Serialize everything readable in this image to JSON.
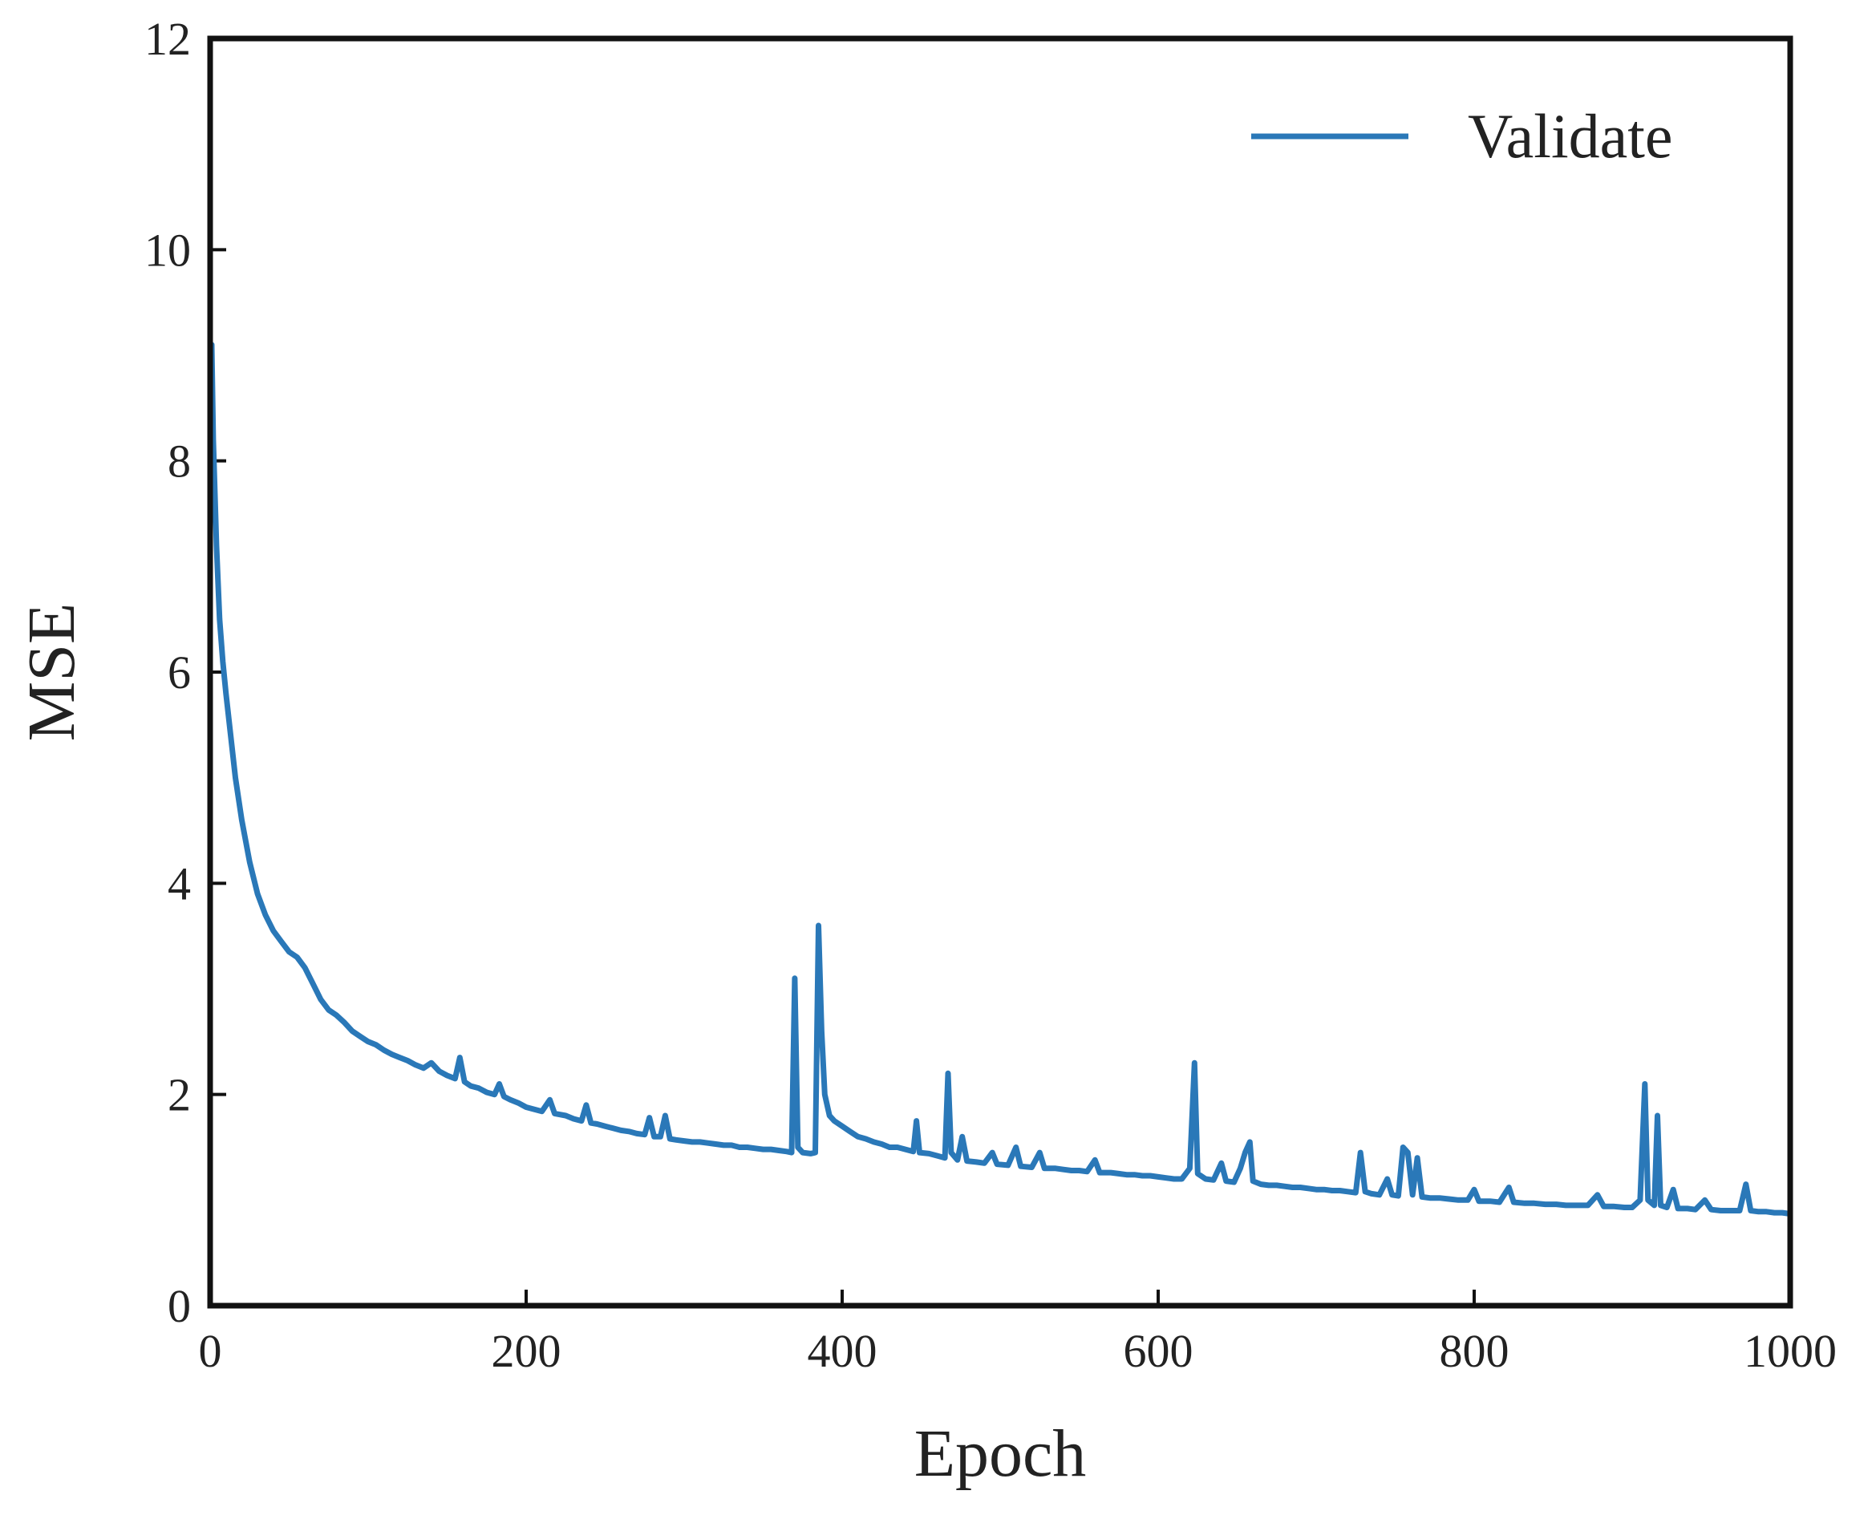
{
  "chart_data": {
    "type": "line",
    "title": "",
    "xlabel": "Epoch",
    "ylabel": "MSE",
    "xlim": [
      0,
      1000
    ],
    "ylim": [
      0,
      12
    ],
    "xticks": [
      0,
      200,
      400,
      600,
      800,
      1000
    ],
    "yticks": [
      0,
      2,
      4,
      6,
      8,
      10,
      12
    ],
    "grid": false,
    "legend_position": "top-right",
    "colors": {
      "line": "#2a78b8",
      "axes": "#111111",
      "text": "#222222"
    },
    "series": [
      {
        "name": "Validate",
        "points": [
          [
            1,
            9.1
          ],
          [
            2,
            8.2
          ],
          [
            4,
            7.2
          ],
          [
            6,
            6.5
          ],
          [
            8,
            6.1
          ],
          [
            10,
            5.8
          ],
          [
            13,
            5.4
          ],
          [
            16,
            5.0
          ],
          [
            20,
            4.6
          ],
          [
            25,
            4.2
          ],
          [
            30,
            3.9
          ],
          [
            35,
            3.7
          ],
          [
            40,
            3.55
          ],
          [
            45,
            3.45
          ],
          [
            50,
            3.35
          ],
          [
            55,
            3.3
          ],
          [
            60,
            3.2
          ],
          [
            65,
            3.05
          ],
          [
            70,
            2.9
          ],
          [
            75,
            2.8
          ],
          [
            80,
            2.75
          ],
          [
            85,
            2.68
          ],
          [
            90,
            2.6
          ],
          [
            95,
            2.55
          ],
          [
            100,
            2.5
          ],
          [
            105,
            2.47
          ],
          [
            110,
            2.42
          ],
          [
            115,
            2.38
          ],
          [
            120,
            2.35
          ],
          [
            125,
            2.32
          ],
          [
            130,
            2.28
          ],
          [
            135,
            2.25
          ],
          [
            140,
            2.3
          ],
          [
            145,
            2.22
          ],
          [
            150,
            2.18
          ],
          [
            155,
            2.15
          ],
          [
            158,
            2.35
          ],
          [
            161,
            2.12
          ],
          [
            165,
            2.08
          ],
          [
            170,
            2.06
          ],
          [
            175,
            2.02
          ],
          [
            180,
            2.0
          ],
          [
            183,
            2.1
          ],
          [
            186,
            1.98
          ],
          [
            190,
            1.95
          ],
          [
            195,
            1.92
          ],
          [
            200,
            1.88
          ],
          [
            205,
            1.86
          ],
          [
            210,
            1.84
          ],
          [
            215,
            1.95
          ],
          [
            218,
            1.82
          ],
          [
            225,
            1.8
          ],
          [
            230,
            1.77
          ],
          [
            235,
            1.75
          ],
          [
            238,
            1.9
          ],
          [
            241,
            1.73
          ],
          [
            245,
            1.72
          ],
          [
            250,
            1.7
          ],
          [
            255,
            1.68
          ],
          [
            260,
            1.66
          ],
          [
            265,
            1.65
          ],
          [
            270,
            1.63
          ],
          [
            275,
            1.62
          ],
          [
            278,
            1.78
          ],
          [
            281,
            1.6
          ],
          [
            285,
            1.6
          ],
          [
            288,
            1.8
          ],
          [
            291,
            1.58
          ],
          [
            295,
            1.57
          ],
          [
            300,
            1.56
          ],
          [
            305,
            1.55
          ],
          [
            310,
            1.55
          ],
          [
            315,
            1.54
          ],
          [
            320,
            1.53
          ],
          [
            325,
            1.52
          ],
          [
            330,
            1.52
          ],
          [
            335,
            1.5
          ],
          [
            340,
            1.5
          ],
          [
            345,
            1.49
          ],
          [
            350,
            1.48
          ],
          [
            355,
            1.48
          ],
          [
            360,
            1.47
          ],
          [
            365,
            1.46
          ],
          [
            368,
            1.45
          ],
          [
            370,
            3.1
          ],
          [
            372,
            1.5
          ],
          [
            375,
            1.45
          ],
          [
            380,
            1.44
          ],
          [
            383,
            1.45
          ],
          [
            385,
            3.6
          ],
          [
            387,
            2.6
          ],
          [
            389,
            2.0
          ],
          [
            392,
            1.8
          ],
          [
            395,
            1.75
          ],
          [
            400,
            1.7
          ],
          [
            405,
            1.65
          ],
          [
            410,
            1.6
          ],
          [
            415,
            1.58
          ],
          [
            420,
            1.55
          ],
          [
            425,
            1.53
          ],
          [
            430,
            1.5
          ],
          [
            435,
            1.5
          ],
          [
            440,
            1.48
          ],
          [
            445,
            1.46
          ],
          [
            447,
            1.75
          ],
          [
            449,
            1.45
          ],
          [
            455,
            1.44
          ],
          [
            460,
            1.42
          ],
          [
            465,
            1.4
          ],
          [
            467,
            2.2
          ],
          [
            469,
            1.45
          ],
          [
            473,
            1.38
          ],
          [
            476,
            1.6
          ],
          [
            479,
            1.37
          ],
          [
            485,
            1.36
          ],
          [
            490,
            1.35
          ],
          [
            495,
            1.45
          ],
          [
            498,
            1.34
          ],
          [
            505,
            1.33
          ],
          [
            510,
            1.5
          ],
          [
            513,
            1.32
          ],
          [
            520,
            1.31
          ],
          [
            525,
            1.45
          ],
          [
            528,
            1.3
          ],
          [
            535,
            1.3
          ],
          [
            540,
            1.29
          ],
          [
            545,
            1.28
          ],
          [
            550,
            1.28
          ],
          [
            555,
            1.27
          ],
          [
            560,
            1.38
          ],
          [
            563,
            1.26
          ],
          [
            570,
            1.26
          ],
          [
            575,
            1.25
          ],
          [
            580,
            1.24
          ],
          [
            585,
            1.24
          ],
          [
            590,
            1.23
          ],
          [
            595,
            1.23
          ],
          [
            600,
            1.22
          ],
          [
            605,
            1.21
          ],
          [
            610,
            1.2
          ],
          [
            615,
            1.2
          ],
          [
            620,
            1.3
          ],
          [
            623,
            2.3
          ],
          [
            625,
            1.25
          ],
          [
            630,
            1.2
          ],
          [
            635,
            1.19
          ],
          [
            640,
            1.35
          ],
          [
            643,
            1.18
          ],
          [
            648,
            1.17
          ],
          [
            652,
            1.3
          ],
          [
            655,
            1.45
          ],
          [
            658,
            1.55
          ],
          [
            660,
            1.18
          ],
          [
            665,
            1.15
          ],
          [
            670,
            1.14
          ],
          [
            675,
            1.14
          ],
          [
            680,
            1.13
          ],
          [
            685,
            1.12
          ],
          [
            690,
            1.12
          ],
          [
            695,
            1.11
          ],
          [
            700,
            1.1
          ],
          [
            705,
            1.1
          ],
          [
            710,
            1.09
          ],
          [
            715,
            1.09
          ],
          [
            720,
            1.08
          ],
          [
            725,
            1.07
          ],
          [
            728,
            1.45
          ],
          [
            731,
            1.08
          ],
          [
            735,
            1.06
          ],
          [
            740,
            1.05
          ],
          [
            745,
            1.2
          ],
          [
            748,
            1.05
          ],
          [
            752,
            1.04
          ],
          [
            755,
            1.5
          ],
          [
            758,
            1.45
          ],
          [
            761,
            1.05
          ],
          [
            764,
            1.4
          ],
          [
            767,
            1.03
          ],
          [
            772,
            1.02
          ],
          [
            778,
            1.02
          ],
          [
            784,
            1.01
          ],
          [
            790,
            1.0
          ],
          [
            796,
            1.0
          ],
          [
            800,
            1.1
          ],
          [
            803,
            0.99
          ],
          [
            810,
            0.99
          ],
          [
            816,
            0.98
          ],
          [
            822,
            1.12
          ],
          [
            825,
            0.98
          ],
          [
            832,
            0.97
          ],
          [
            838,
            0.97
          ],
          [
            845,
            0.96
          ],
          [
            852,
            0.96
          ],
          [
            858,
            0.95
          ],
          [
            865,
            0.95
          ],
          [
            872,
            0.95
          ],
          [
            878,
            1.05
          ],
          [
            882,
            0.94
          ],
          [
            888,
            0.94
          ],
          [
            895,
            0.93
          ],
          [
            900,
            0.93
          ],
          [
            905,
            1.0
          ],
          [
            908,
            2.1
          ],
          [
            910,
            1.0
          ],
          [
            914,
            0.95
          ],
          [
            916,
            1.8
          ],
          [
            918,
            0.95
          ],
          [
            922,
            0.93
          ],
          [
            926,
            1.1
          ],
          [
            929,
            0.92
          ],
          [
            935,
            0.92
          ],
          [
            940,
            0.91
          ],
          [
            946,
            1.0
          ],
          [
            950,
            0.91
          ],
          [
            956,
            0.9
          ],
          [
            962,
            0.9
          ],
          [
            968,
            0.9
          ],
          [
            972,
            1.15
          ],
          [
            975,
            0.9
          ],
          [
            980,
            0.89
          ],
          [
            985,
            0.89
          ],
          [
            990,
            0.88
          ],
          [
            995,
            0.88
          ],
          [
            1000,
            0.87
          ]
        ]
      }
    ]
  }
}
